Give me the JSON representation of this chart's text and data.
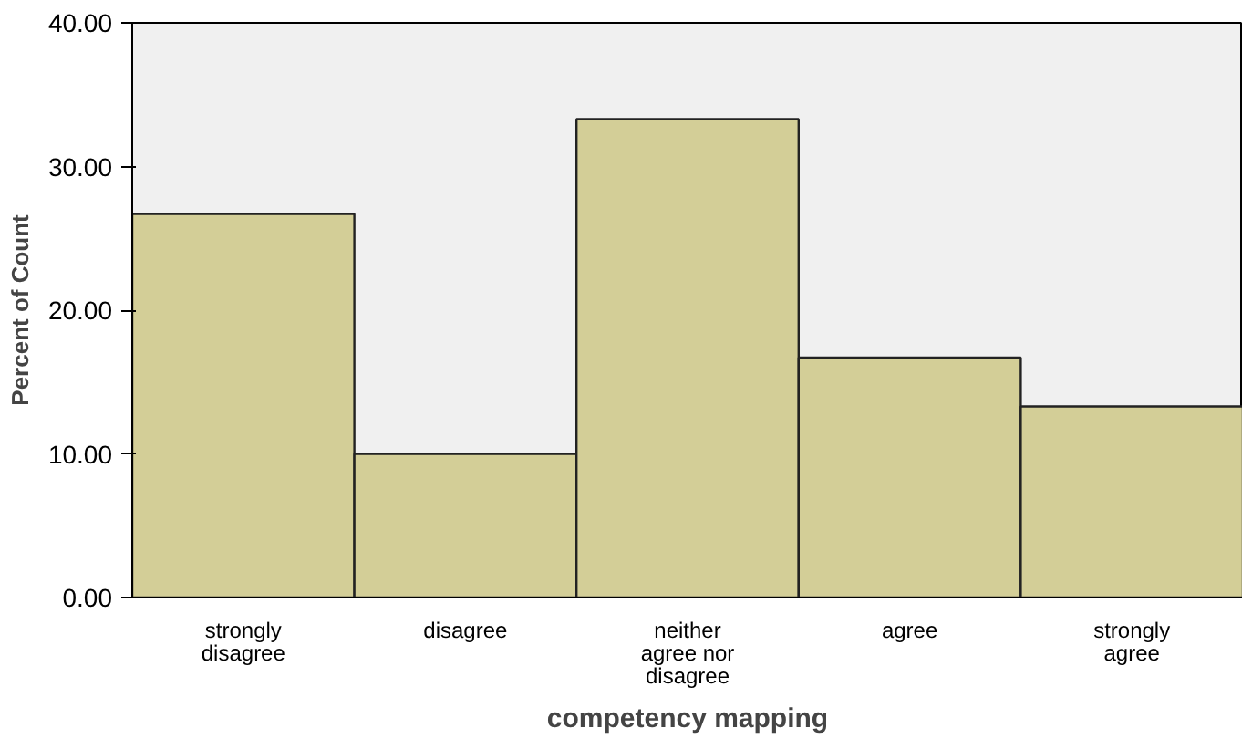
{
  "chart_data": {
    "type": "bar",
    "xlabel": "competency mapping",
    "ylabel": "Percent of Count",
    "categories": [
      "strongly disagree",
      "disagree",
      "neither agree nor disagree",
      "agree",
      "strongly agree"
    ],
    "values": [
      26.7,
      10.0,
      33.3,
      16.7,
      13.3
    ],
    "color": "#d3ce97",
    "ylim": [
      0,
      40
    ],
    "yticks": [
      {
        "value": 0,
        "label": "0.00"
      },
      {
        "value": 10,
        "label": "10.00"
      },
      {
        "value": 20,
        "label": "20.00"
      },
      {
        "value": 30,
        "label": "30.00"
      },
      {
        "value": 40,
        "label": "40.00"
      }
    ],
    "grid": false
  }
}
